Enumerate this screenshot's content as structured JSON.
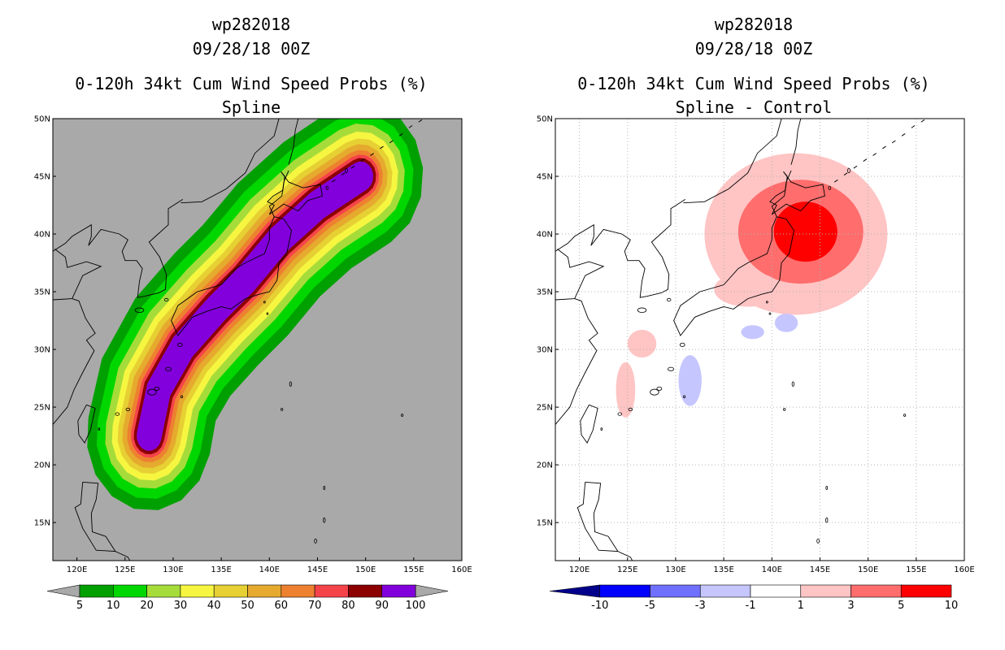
{
  "chart_data": [
    {
      "type": "heatmap",
      "title": "wp282018",
      "subtitle": "09/28/18 00Z",
      "product": "0-120h 34kt Cum Wind Speed Probs (%)",
      "variant": "Spline",
      "xaxis": {
        "ticks": [
          "120E",
          "125E",
          "130E",
          "135E",
          "140E",
          "145E",
          "150E",
          "155E",
          "160E"
        ],
        "range": [
          117.5,
          160
        ]
      },
      "yaxis": {
        "ticks": [
          "15N",
          "20N",
          "25N",
          "30N",
          "35N",
          "40N",
          "45N",
          "50N"
        ],
        "range": [
          11.7,
          50
        ]
      },
      "grid": false,
      "background": "#a9a9a9",
      "colorbar": {
        "levels": [
          "5",
          "10",
          "20",
          "30",
          "40",
          "50",
          "60",
          "70",
          "80",
          "90",
          "100"
        ],
        "colors": [
          "#00a000",
          "#00d700",
          "#a6dc3a",
          "#f6f641",
          "#e6d033",
          "#e5aa2e",
          "#ed8130",
          "#f5434a",
          "#8c0000",
          "#8200dc"
        ],
        "end_color": "#a9a9a9"
      },
      "track": {
        "center_lon": [
          127.5,
          128.5,
          131.0,
          134.5,
          137.5,
          141.0,
          145.0,
          149.5
        ],
        "center_lat": [
          22.5,
          26.5,
          30.2,
          33.5,
          36.0,
          39.5,
          42.5,
          45.0
        ],
        "band_half_width_deg": {
          "5": 6.5,
          "10": 5.5,
          "20": 4.6,
          "30": 3.9,
          "40": 3.3,
          "50": 2.8,
          "60": 2.3,
          "70": 1.9,
          "80": 1.6,
          "90": 1.3,
          "100": 0.9
        }
      }
    },
    {
      "type": "heatmap",
      "title": "wp282018",
      "subtitle": "09/28/18 00Z",
      "product": "0-120h 34kt Cum Wind Speed Probs (%)",
      "variant": "Spline - Control",
      "xaxis": {
        "ticks": [
          "120E",
          "125E",
          "130E",
          "135E",
          "140E",
          "145E",
          "150E",
          "155E",
          "160E"
        ],
        "range": [
          117.5,
          160
        ]
      },
      "yaxis": {
        "ticks": [
          "15N",
          "20N",
          "25N",
          "30N",
          "35N",
          "40N",
          "45N",
          "50N"
        ],
        "range": [
          11.7,
          50
        ]
      },
      "grid": true,
      "background": "#ffffff",
      "colorbar": {
        "levels": [
          "-10",
          "-5",
          "-3",
          "-1",
          "1",
          "3",
          "5",
          "10"
        ],
        "colors": [
          "#0000cd",
          "#0000ff",
          "#7070ff",
          "#c6c6ff",
          "#ffffff",
          "#ffc4c4",
          "#ff6d6d",
          "#ff0000"
        ],
        "low_end_color": "#00008b",
        "high_end_color": "#8b0000"
      },
      "anomalies": {
        "positive": [
          {
            "lon": 142.5,
            "lat": 40.0,
            "rlon": 9.5,
            "rlat": 7.0,
            "level": 1
          },
          {
            "lon": 143.0,
            "lat": 40.2,
            "rlon": 6.5,
            "rlat": 4.5,
            "level": 3
          },
          {
            "lon": 143.5,
            "lat": 40.2,
            "rlon": 3.3,
            "rlat": 2.6,
            "level": 5
          },
          {
            "lon": 137.5,
            "lat": 35.2,
            "rlon": 3.5,
            "rlat": 1.5,
            "level": 1
          },
          {
            "lon": 124.8,
            "lat": 26.5,
            "rlon": 1.0,
            "rlat": 2.4,
            "level": 1
          },
          {
            "lon": 126.5,
            "lat": 30.5,
            "rlon": 1.5,
            "rlat": 1.2,
            "level": 1
          }
        ],
        "negative": [
          {
            "lon": 131.5,
            "lat": 27.3,
            "rlon": 1.2,
            "rlat": 2.2,
            "level": -3
          },
          {
            "lon": 138.0,
            "lat": 31.5,
            "rlon": 1.2,
            "rlat": 0.6,
            "level": -3
          },
          {
            "lon": 141.5,
            "lat": 32.3,
            "rlon": 1.2,
            "rlat": 0.8,
            "level": -3
          }
        ]
      }
    }
  ]
}
